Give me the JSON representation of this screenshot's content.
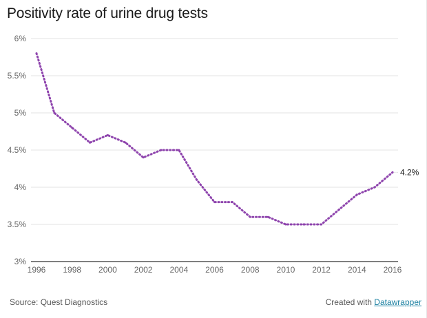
{
  "chart_data": {
    "type": "line",
    "title": "Positivity rate of urine drug tests",
    "xlabel": "",
    "ylabel": "",
    "x": [
      1996,
      1997,
      1998,
      1999,
      2000,
      2001,
      2002,
      2003,
      2004,
      2005,
      2006,
      2007,
      2008,
      2009,
      2010,
      2011,
      2012,
      2013,
      2014,
      2015,
      2016
    ],
    "series": [
      {
        "name": "Positivity rate",
        "values": [
          5.8,
          5.0,
          4.8,
          4.6,
          4.7,
          4.6,
          4.4,
          4.5,
          4.5,
          4.1,
          3.8,
          3.8,
          3.6,
          3.6,
          3.5,
          3.5,
          3.5,
          3.7,
          3.9,
          4.0,
          4.2
        ],
        "color": "#8e44ad"
      }
    ],
    "xlim": [
      1996,
      2016
    ],
    "ylim": [
      3,
      6
    ],
    "x_ticks": [
      "1996",
      "1998",
      "2000",
      "2002",
      "2004",
      "2006",
      "2008",
      "2010",
      "2012",
      "2014",
      "2016"
    ],
    "y_ticks": [
      "3%",
      "3.5%",
      "4%",
      "4.5%",
      "5%",
      "5.5%",
      "6%"
    ],
    "y_tick_values": [
      3,
      3.5,
      4,
      4.5,
      5,
      5.5,
      6
    ],
    "end_label": "4.2%",
    "grid": true,
    "line_style": "dotted"
  },
  "footer": {
    "source": "Source: Quest Diagnostics",
    "credit_prefix": "Created with ",
    "credit_link": "Datawrapper"
  },
  "colors": {
    "line": "#8e44ad",
    "grid": "#e3e3e3",
    "axis": "#333333",
    "link": "#1d81a2"
  }
}
